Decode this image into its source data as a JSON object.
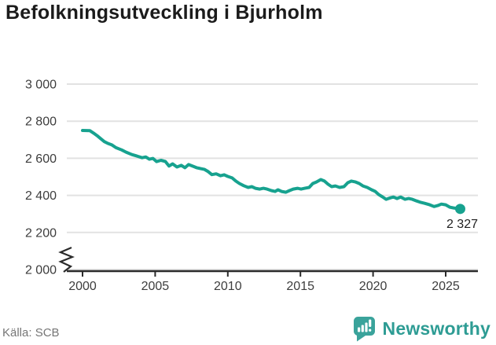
{
  "title": "Befolkningsutveckling i Bjurholm",
  "source": "Källa: SCB",
  "brand": {
    "name": "Newsworthy",
    "icon": "newsworthy-bubble-chart-icon",
    "color": "#2E9C94"
  },
  "chart_data": {
    "type": "line",
    "title": "Befolkningsutveckling i Bjurholm",
    "xlabel": "",
    "ylabel": "",
    "line_color": "#17A28F",
    "grid": true,
    "axis_break_at_bottom": true,
    "ylim": [
      2000,
      3000
    ],
    "xlim": [
      1999,
      2027
    ],
    "end_label": "2 327",
    "latest_point": {
      "x": 2026.0,
      "y": 2327
    },
    "y_axis": {
      "ticks": [
        {
          "v": 3000,
          "label": "3 000"
        },
        {
          "v": 2800,
          "label": "2 800"
        },
        {
          "v": 2600,
          "label": "2 600"
        },
        {
          "v": 2400,
          "label": "2 400"
        },
        {
          "v": 2200,
          "label": "2 200"
        },
        {
          "v": 2000,
          "label": "2 000"
        }
      ]
    },
    "x_axis": {
      "ticks": [
        {
          "v": 2000,
          "label": "2000"
        },
        {
          "v": 2005,
          "label": "2005"
        },
        {
          "v": 2010,
          "label": "2010"
        },
        {
          "v": 2015,
          "label": "2015"
        },
        {
          "v": 2020,
          "label": "2020"
        },
        {
          "v": 2025,
          "label": "2025"
        }
      ]
    },
    "series": [
      {
        "points": [
          [
            2000.0,
            2750
          ],
          [
            2000.5,
            2749
          ],
          [
            2000.75,
            2736
          ],
          [
            2001.0,
            2722
          ],
          [
            2001.25,
            2706
          ],
          [
            2001.5,
            2690
          ],
          [
            2001.75,
            2680
          ],
          [
            2002.0,
            2673
          ],
          [
            2002.3,
            2657
          ],
          [
            2002.7,
            2645
          ],
          [
            2003.0,
            2633
          ],
          [
            2003.4,
            2620
          ],
          [
            2003.75,
            2612
          ],
          [
            2004.1,
            2603
          ],
          [
            2004.35,
            2607
          ],
          [
            2004.6,
            2595
          ],
          [
            2004.85,
            2599
          ],
          [
            2005.1,
            2582
          ],
          [
            2005.4,
            2589
          ],
          [
            2005.7,
            2583
          ],
          [
            2005.95,
            2558
          ],
          [
            2006.2,
            2570
          ],
          [
            2006.5,
            2553
          ],
          [
            2006.8,
            2562
          ],
          [
            2007.05,
            2549
          ],
          [
            2007.3,
            2566
          ],
          [
            2007.6,
            2557
          ],
          [
            2007.85,
            2549
          ],
          [
            2008.1,
            2545
          ],
          [
            2008.4,
            2540
          ],
          [
            2008.65,
            2528
          ],
          [
            2008.9,
            2512
          ],
          [
            2009.2,
            2516
          ],
          [
            2009.5,
            2506
          ],
          [
            2009.75,
            2511
          ],
          [
            2010.0,
            2502
          ],
          [
            2010.3,
            2494
          ],
          [
            2010.55,
            2477
          ],
          [
            2010.8,
            2464
          ],
          [
            2011.1,
            2452
          ],
          [
            2011.4,
            2443
          ],
          [
            2011.65,
            2447
          ],
          [
            2011.9,
            2438
          ],
          [
            2012.2,
            2434
          ],
          [
            2012.45,
            2438
          ],
          [
            2012.7,
            2434
          ],
          [
            2013.0,
            2426
          ],
          [
            2013.25,
            2421
          ],
          [
            2013.45,
            2430
          ],
          [
            2013.7,
            2421
          ],
          [
            2014.0,
            2417
          ],
          [
            2014.25,
            2426
          ],
          [
            2014.5,
            2434
          ],
          [
            2014.8,
            2438
          ],
          [
            2015.05,
            2434
          ],
          [
            2015.3,
            2438
          ],
          [
            2015.6,
            2443
          ],
          [
            2015.85,
            2464
          ],
          [
            2016.1,
            2472
          ],
          [
            2016.4,
            2485
          ],
          [
            2016.65,
            2477
          ],
          [
            2016.9,
            2460
          ],
          [
            2017.15,
            2447
          ],
          [
            2017.4,
            2451
          ],
          [
            2017.7,
            2443
          ],
          [
            2018.0,
            2447
          ],
          [
            2018.25,
            2468
          ],
          [
            2018.5,
            2477
          ],
          [
            2018.8,
            2472
          ],
          [
            2019.05,
            2464
          ],
          [
            2019.3,
            2451
          ],
          [
            2019.6,
            2443
          ],
          [
            2019.9,
            2430
          ],
          [
            2020.15,
            2421
          ],
          [
            2020.4,
            2404
          ],
          [
            2020.65,
            2392
          ],
          [
            2020.9,
            2379
          ],
          [
            2021.2,
            2387
          ],
          [
            2021.4,
            2391
          ],
          [
            2021.65,
            2383
          ],
          [
            2021.9,
            2391
          ],
          [
            2022.2,
            2379
          ],
          [
            2022.45,
            2383
          ],
          [
            2022.7,
            2379
          ],
          [
            2023.0,
            2370
          ],
          [
            2023.3,
            2362
          ],
          [
            2023.55,
            2357
          ],
          [
            2023.9,
            2349
          ],
          [
            2024.2,
            2340
          ],
          [
            2024.45,
            2345
          ],
          [
            2024.7,
            2353
          ],
          [
            2025.0,
            2349
          ],
          [
            2025.3,
            2336
          ],
          [
            2025.55,
            2332
          ],
          [
            2026.0,
            2327
          ]
        ]
      }
    ]
  }
}
